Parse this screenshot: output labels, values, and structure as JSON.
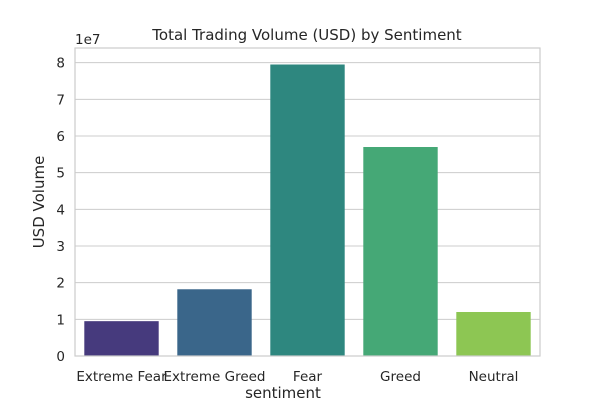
{
  "chart_data": {
    "type": "bar",
    "title": "Total Trading Volume (USD) by Sentiment",
    "xlabel": "sentiment",
    "ylabel": "USD Volume",
    "y_offset_label": "1e7",
    "y_scale": 10000000,
    "ylim": [
      0,
      8.4
    ],
    "yticks": [
      0,
      1,
      2,
      3,
      4,
      5,
      6,
      7,
      8
    ],
    "grid": true,
    "categories": [
      "Extreme Fear",
      "Extreme Greed",
      "Fear",
      "Greed",
      "Neutral"
    ],
    "values": [
      9500000,
      18200000,
      79500000,
      57000000,
      12000000
    ],
    "colors": [
      "#463a7d",
      "#3a668a",
      "#2e877f",
      "#45a876",
      "#8dc653"
    ]
  }
}
